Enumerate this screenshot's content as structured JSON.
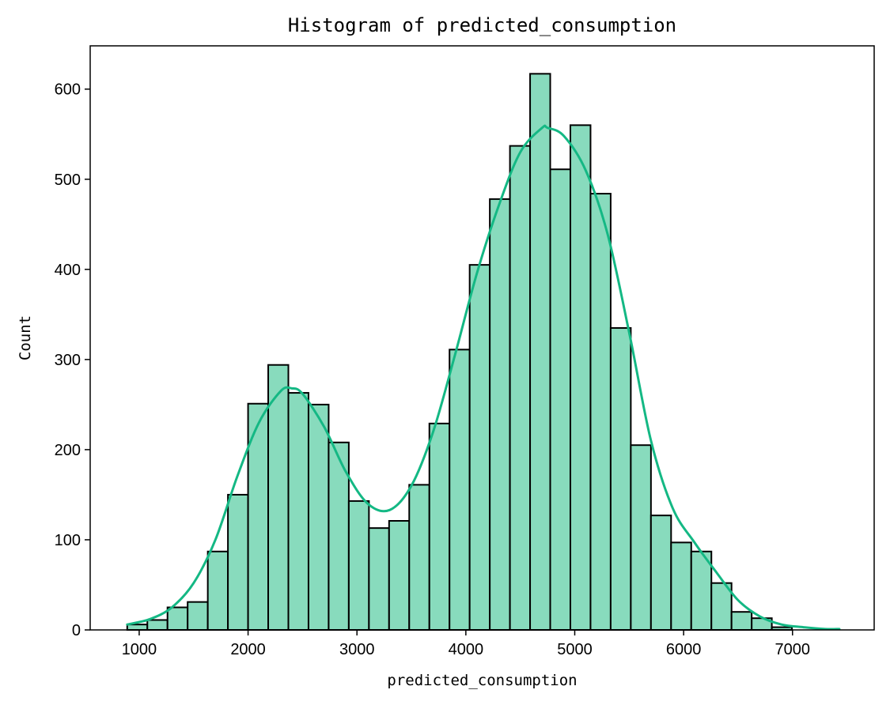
{
  "chart_data": {
    "type": "bar",
    "subtype": "histogram",
    "title": "Histogram of predicted_consumption",
    "xlabel": "predicted_consumption",
    "ylabel": "Count",
    "xlim": [
      550,
      7750
    ],
    "ylim": [
      0,
      648
    ],
    "xticks": [
      1000,
      2000,
      3000,
      4000,
      5000,
      6000,
      7000
    ],
    "yticks": [
      0,
      100,
      200,
      300,
      400,
      500,
      600
    ],
    "grid": false,
    "bar_color": "#88dbbd",
    "edge_color": "#000000",
    "kde_color": "#14b884",
    "bin_edges": [
      890,
      1075,
      1260,
      1445,
      1630,
      1815,
      2000,
      2185,
      2370,
      2555,
      2740,
      2925,
      3110,
      3295,
      3480,
      3665,
      3850,
      4035,
      4220,
      4405,
      4590,
      4775,
      4960,
      5145,
      5330,
      5515,
      5700,
      5885,
      6070,
      6255,
      6440,
      6625,
      6810,
      6995
    ],
    "values": [
      6,
      11,
      25,
      31,
      87,
      150,
      251,
      294,
      263,
      250,
      208,
      143,
      113,
      121,
      161,
      229,
      311,
      405,
      478,
      537,
      617,
      511,
      560,
      484,
      335,
      205,
      127,
      97,
      87,
      52,
      20,
      13,
      3
    ],
    "kde": {
      "x": [
        890,
        1100,
        1300,
        1500,
        1700,
        1900,
        2100,
        2300,
        2400,
        2500,
        2700,
        2900,
        3100,
        3300,
        3500,
        3700,
        3900,
        4100,
        4300,
        4500,
        4700,
        4750,
        4900,
        5100,
        5300,
        5500,
        5700,
        5900,
        6100,
        6300,
        6500,
        6700,
        6900,
        7100,
        7300,
        7430
      ],
      "y": [
        6,
        12,
        25,
        52,
        100,
        170,
        230,
        265,
        268,
        262,
        225,
        175,
        140,
        133,
        160,
        220,
        305,
        395,
        470,
        530,
        557,
        557,
        548,
        510,
        440,
        330,
        210,
        135,
        97,
        64,
        33,
        15,
        6,
        3,
        1,
        1
      ]
    }
  }
}
